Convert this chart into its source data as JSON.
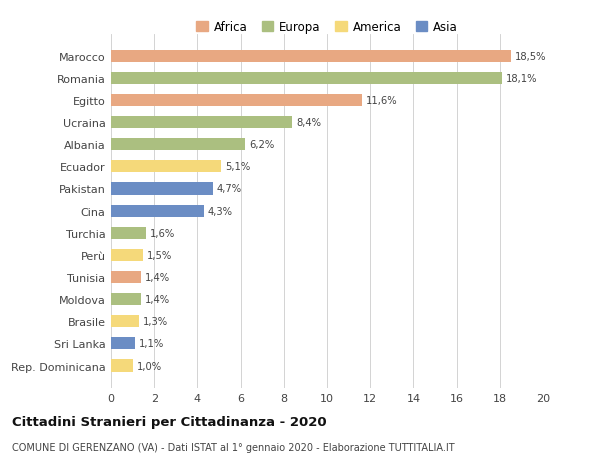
{
  "countries": [
    "Rep. Dominicana",
    "Sri Lanka",
    "Brasile",
    "Moldova",
    "Tunisia",
    "Perù",
    "Turchia",
    "Cina",
    "Pakistan",
    "Ecuador",
    "Albania",
    "Ucraina",
    "Egitto",
    "Romania",
    "Marocco"
  ],
  "values": [
    1.0,
    1.1,
    1.3,
    1.4,
    1.4,
    1.5,
    1.6,
    4.3,
    4.7,
    5.1,
    6.2,
    8.4,
    11.6,
    18.1,
    18.5
  ],
  "labels": [
    "1,0%",
    "1,1%",
    "1,3%",
    "1,4%",
    "1,4%",
    "1,5%",
    "1,6%",
    "4,3%",
    "4,7%",
    "5,1%",
    "6,2%",
    "8,4%",
    "11,6%",
    "18,1%",
    "18,5%"
  ],
  "bar_colors": [
    "#F5D97A",
    "#6B8DC4",
    "#F5D97A",
    "#ABBF80",
    "#E8A882",
    "#F5D97A",
    "#ABBF80",
    "#6B8DC4",
    "#6B8DC4",
    "#F5D97A",
    "#ABBF80",
    "#ABBF80",
    "#E8A882",
    "#ABBF80",
    "#E8A882"
  ],
  "title": "Cittadini Stranieri per Cittadinanza - 2020",
  "subtitle": "COMUNE DI GERENZANO (VA) - Dati ISTAT al 1° gennaio 2020 - Elaborazione TUTTITALIA.IT",
  "xlim": [
    0,
    20
  ],
  "xticks": [
    0,
    2,
    4,
    6,
    8,
    10,
    12,
    14,
    16,
    18,
    20
  ],
  "legend_labels": [
    "Africa",
    "Europa",
    "America",
    "Asia"
  ],
  "legend_colors": [
    "#E8A882",
    "#ABBF80",
    "#F5D97A",
    "#6B8DC4"
  ],
  "bg_color": "#FFFFFF",
  "grid_color": "#CCCCCC"
}
